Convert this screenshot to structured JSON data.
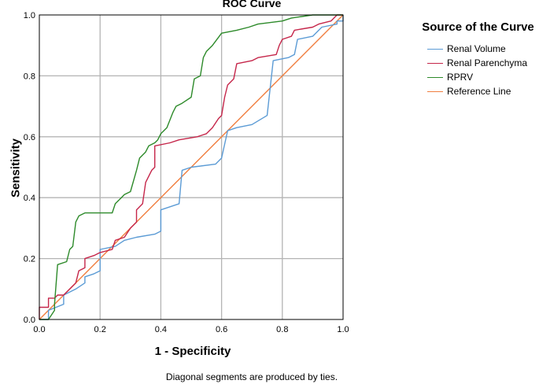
{
  "chart_data": {
    "type": "line",
    "title": "ROC Curve",
    "xlabel": "1 - Specificity",
    "ylabel": "Sensitivity",
    "xlim": [
      0,
      1
    ],
    "ylim": [
      0,
      1
    ],
    "xticks": [
      "0.0",
      "0.2",
      "0.4",
      "0.6",
      "0.8",
      "1.0"
    ],
    "yticks": [
      "0.0",
      "0.2",
      "0.4",
      "0.6",
      "0.8",
      "1.0"
    ],
    "grid": true,
    "legend_title": "Source of the Curve",
    "legend_position": "right",
    "footnote": "Diagonal segments are produced by ties.",
    "series": [
      {
        "name": "Renal Volume",
        "color": "#5b9bd5",
        "points": [
          [
            0,
            0
          ],
          [
            0.03,
            0
          ],
          [
            0.03,
            0.03
          ],
          [
            0.08,
            0.05
          ],
          [
            0.08,
            0.08
          ],
          [
            0.12,
            0.1
          ],
          [
            0.15,
            0.12
          ],
          [
            0.15,
            0.14
          ],
          [
            0.18,
            0.15
          ],
          [
            0.2,
            0.16
          ],
          [
            0.2,
            0.23
          ],
          [
            0.25,
            0.24
          ],
          [
            0.28,
            0.26
          ],
          [
            0.32,
            0.27
          ],
          [
            0.38,
            0.28
          ],
          [
            0.4,
            0.29
          ],
          [
            0.4,
            0.36
          ],
          [
            0.43,
            0.37
          ],
          [
            0.46,
            0.38
          ],
          [
            0.47,
            0.49
          ],
          [
            0.5,
            0.5
          ],
          [
            0.58,
            0.51
          ],
          [
            0.6,
            0.53
          ],
          [
            0.62,
            0.62
          ],
          [
            0.65,
            0.63
          ],
          [
            0.7,
            0.64
          ],
          [
            0.75,
            0.67
          ],
          [
            0.77,
            0.85
          ],
          [
            0.82,
            0.86
          ],
          [
            0.84,
            0.87
          ],
          [
            0.85,
            0.92
          ],
          [
            0.9,
            0.93
          ],
          [
            0.93,
            0.96
          ],
          [
            0.98,
            0.97
          ],
          [
            0.98,
            0.98
          ],
          [
            1,
            0.98
          ],
          [
            1,
            1
          ]
        ]
      },
      {
        "name": "Renal Parenchyma",
        "color": "#c5264a",
        "points": [
          [
            0,
            0
          ],
          [
            0,
            0.04
          ],
          [
            0.03,
            0.04
          ],
          [
            0.03,
            0.07
          ],
          [
            0.05,
            0.07
          ],
          [
            0.06,
            0.08
          ],
          [
            0.08,
            0.08
          ],
          [
            0.12,
            0.12
          ],
          [
            0.13,
            0.16
          ],
          [
            0.15,
            0.17
          ],
          [
            0.15,
            0.2
          ],
          [
            0.18,
            0.21
          ],
          [
            0.2,
            0.22
          ],
          [
            0.24,
            0.23
          ],
          [
            0.25,
            0.26
          ],
          [
            0.28,
            0.27
          ],
          [
            0.3,
            0.3
          ],
          [
            0.32,
            0.32
          ],
          [
            0.32,
            0.36
          ],
          [
            0.34,
            0.38
          ],
          [
            0.35,
            0.45
          ],
          [
            0.37,
            0.49
          ],
          [
            0.38,
            0.5
          ],
          [
            0.38,
            0.57
          ],
          [
            0.43,
            0.58
          ],
          [
            0.46,
            0.59
          ],
          [
            0.52,
            0.6
          ],
          [
            0.55,
            0.61
          ],
          [
            0.57,
            0.63
          ],
          [
            0.59,
            0.66
          ],
          [
            0.6,
            0.67
          ],
          [
            0.61,
            0.73
          ],
          [
            0.62,
            0.77
          ],
          [
            0.64,
            0.79
          ],
          [
            0.65,
            0.84
          ],
          [
            0.7,
            0.85
          ],
          [
            0.72,
            0.86
          ],
          [
            0.78,
            0.87
          ],
          [
            0.79,
            0.9
          ],
          [
            0.8,
            0.92
          ],
          [
            0.83,
            0.93
          ],
          [
            0.84,
            0.95
          ],
          [
            0.9,
            0.96
          ],
          [
            0.92,
            0.97
          ],
          [
            0.96,
            0.98
          ],
          [
            0.98,
            1
          ],
          [
            1,
            1
          ]
        ]
      },
      {
        "name": "RPRV",
        "color": "#2d8a2a",
        "points": [
          [
            0,
            0
          ],
          [
            0.03,
            0
          ],
          [
            0.05,
            0.03
          ],
          [
            0.05,
            0.05
          ],
          [
            0.06,
            0.18
          ],
          [
            0.09,
            0.19
          ],
          [
            0.1,
            0.23
          ],
          [
            0.11,
            0.24
          ],
          [
            0.12,
            0.32
          ],
          [
            0.13,
            0.34
          ],
          [
            0.15,
            0.35
          ],
          [
            0.2,
            0.35
          ],
          [
            0.24,
            0.35
          ],
          [
            0.25,
            0.38
          ],
          [
            0.27,
            0.4
          ],
          [
            0.28,
            0.41
          ],
          [
            0.3,
            0.42
          ],
          [
            0.32,
            0.49
          ],
          [
            0.33,
            0.53
          ],
          [
            0.35,
            0.55
          ],
          [
            0.36,
            0.57
          ],
          [
            0.38,
            0.58
          ],
          [
            0.39,
            0.59
          ],
          [
            0.4,
            0.61
          ],
          [
            0.42,
            0.63
          ],
          [
            0.44,
            0.68
          ],
          [
            0.45,
            0.7
          ],
          [
            0.47,
            0.71
          ],
          [
            0.5,
            0.73
          ],
          [
            0.51,
            0.79
          ],
          [
            0.53,
            0.8
          ],
          [
            0.54,
            0.86
          ],
          [
            0.55,
            0.88
          ],
          [
            0.57,
            0.9
          ],
          [
            0.6,
            0.94
          ],
          [
            0.65,
            0.95
          ],
          [
            0.69,
            0.96
          ],
          [
            0.72,
            0.97
          ],
          [
            0.8,
            0.98
          ],
          [
            0.83,
            0.99
          ],
          [
            0.9,
            1
          ],
          [
            1,
            1
          ]
        ]
      },
      {
        "name": "Reference Line",
        "color": "#f07e3f",
        "points": [
          [
            0,
            0
          ],
          [
            1,
            1
          ]
        ]
      }
    ]
  }
}
